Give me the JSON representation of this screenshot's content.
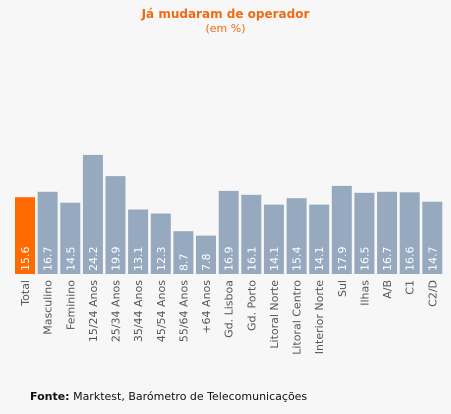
{
  "title": "Já mudaram de operador",
  "subtitle": "(em %)",
  "source": {
    "label": "Fonte:",
    "text": "Marktest, Barómetro de Telecomunicações"
  },
  "colors": {
    "highlight": "#ff6a00",
    "bar": "#97a9bf",
    "label": "#555555",
    "value_text": "#ffffff"
  },
  "chart_data": {
    "type": "bar",
    "title": "Já mudaram de operador",
    "subtitle": "(em %)",
    "categories": [
      "Total",
      "Masculino",
      "Feminino",
      "15/24 Anos",
      "25/34 Anos",
      "35/44 Anos",
      "45/54 Anos",
      "55/64 Anos",
      "+64 Anos",
      "Gd. Lisboa",
      "Gd. Porto",
      "Litoral Norte",
      "Litoral Centro",
      "Interior Norte",
      "Sul",
      "Ilhas",
      "A/B",
      "C1",
      "C2/D"
    ],
    "values": [
      15.6,
      16.7,
      14.5,
      24.2,
      19.9,
      13.1,
      12.3,
      8.7,
      7.8,
      16.9,
      16.1,
      14.1,
      15.4,
      14.1,
      17.9,
      16.5,
      16.7,
      16.6,
      14.7
    ],
    "value_labels": [
      "15.6",
      "16.7",
      "14.5",
      "24.2",
      "19.9",
      "13.1",
      "12.3",
      "8.7",
      "7.8",
      "16.9",
      "16.1",
      "14.1",
      "15.4",
      "14.1",
      "17.9",
      "16.5",
      "16.7",
      "16.6",
      "14.7"
    ],
    "highlight_index": 0,
    "ylim": [
      0,
      27
    ],
    "grid": false,
    "xlabel": "",
    "ylabel": ""
  }
}
